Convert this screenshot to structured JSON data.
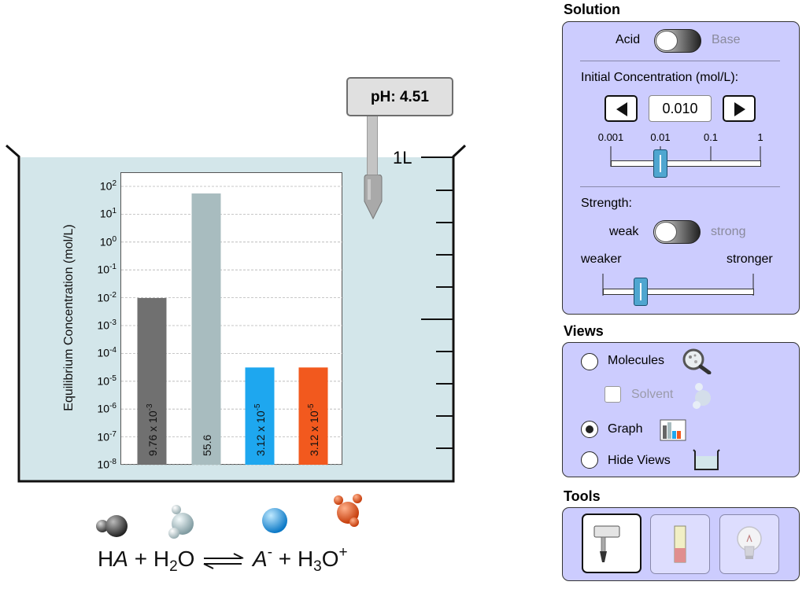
{
  "scene": {
    "beaker_volume_label": "1L",
    "ph_meter": {
      "text": "pH: 4.51"
    }
  },
  "graph": {
    "y_axis_label": "Equilibrium Concentration (mol/L)"
  },
  "chart_data": {
    "type": "bar",
    "ylabel": "Equilibrium Concentration (mol/L)",
    "yscale": "log",
    "ylim": [
      1e-08,
      100
    ],
    "grid": true,
    "y_ticks": [
      {
        "base": "10",
        "exp": "2"
      },
      {
        "base": "10",
        "exp": "1"
      },
      {
        "base": "10",
        "exp": "0"
      },
      {
        "base": "10",
        "exp": "-1"
      },
      {
        "base": "10",
        "exp": "-2"
      },
      {
        "base": "10",
        "exp": "-3"
      },
      {
        "base": "10",
        "exp": "-4"
      },
      {
        "base": "10",
        "exp": "-5"
      },
      {
        "base": "10",
        "exp": "-6"
      },
      {
        "base": "10",
        "exp": "-7"
      },
      {
        "base": "10",
        "exp": "-8"
      }
    ],
    "bars": [
      {
        "species": "HA",
        "value": 0.00976,
        "mantissa": "9.76 x 10",
        "exp": "-3",
        "color": "#707070"
      },
      {
        "species": "H2O",
        "value": 55.6,
        "mantissa": "55.6",
        "exp": "",
        "color": "#a8bcbf"
      },
      {
        "species": "A-",
        "value": 3.12e-05,
        "mantissa": "3.12 x 10",
        "exp": "-5",
        "color": "#1ea7ef"
      },
      {
        "species": "H3O+",
        "value": 3.12e-05,
        "mantissa": "3.12 x 10",
        "exp": "-5",
        "color": "#f2591e"
      }
    ]
  },
  "equation": {
    "ha_h": "H",
    "ha_a": "A",
    "plus1": " + ",
    "h2o_h": "H",
    "h2o_sub": "2",
    "h2o_o": "O",
    "a_species": "A",
    "a_charge": "-",
    "plus2": " + ",
    "h3o_h": "H",
    "h3o_sub": "3",
    "h3o_o": "O",
    "h3o_charge": "+"
  },
  "panels": {
    "solution": {
      "heading": "Solution",
      "acid_label": "Acid",
      "base_label": "Base",
      "initial_conc_label": "Initial Concentration (mol/L):",
      "conc_value": "0.010",
      "conc_ticks": [
        "0.001",
        "0.01",
        "0.1",
        "1"
      ],
      "conc_slider_log10": -2.0,
      "strength_label": "Strength:",
      "weak_label": "weak",
      "strong_label": "strong",
      "weaker_label": "weaker",
      "stronger_label": "stronger",
      "strength_slider_fraction": 0.25
    },
    "views": {
      "heading": "Views",
      "molecules_label": "Molecules",
      "solvent_label": "Solvent",
      "graph_label": "Graph",
      "hide_views_label": "Hide Views",
      "selected": "Graph"
    },
    "tools": {
      "heading": "Tools",
      "selected": "ph-meter"
    }
  }
}
